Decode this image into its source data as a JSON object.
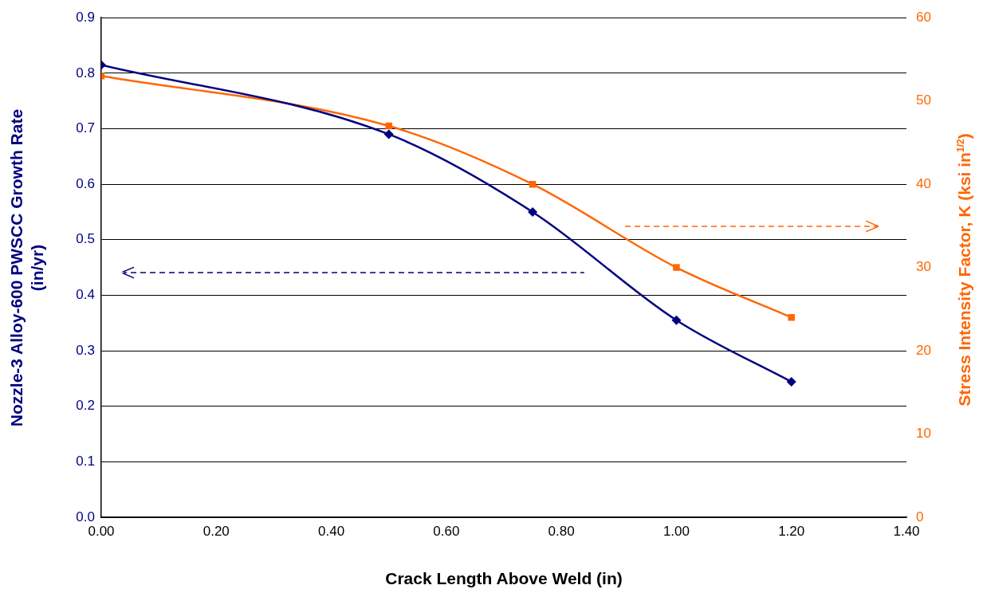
{
  "chart_data": {
    "type": "line",
    "xlabel": "Crack Length Above Weld (in)",
    "ylabel": "Nozzle-3 Alloy-600 PWSCC Growth Rate (in/yr)",
    "y2label": "Stress Intensity Factor, K (ksi in$^{1/2}$)",
    "x": [
      0,
      0.5,
      0.75,
      1.0,
      1.2
    ],
    "series": [
      {
        "color": "#000080",
        "marker": "diamond",
        "values": [
          0.815,
          0.69,
          0.55,
          0.355,
          0.244
        ]
      },
      {
        "color": "#ff6600",
        "marker": "square",
        "axis": "y2",
        "values": [
          53,
          47,
          40,
          30,
          24
        ]
      }
    ],
    "xlim": [
      0,
      1.4
    ],
    "xticks": [
      {
        "value": 0,
        "label": "0.00"
      },
      {
        "value": 0.2,
        "label": "0.20"
      },
      {
        "value": 0.4,
        "label": "0.40"
      },
      {
        "value": 0.6,
        "label": "0.60"
      },
      {
        "value": 0.8,
        "label": "0.80"
      },
      {
        "value": 1.0,
        "label": "1.00"
      },
      {
        "value": 1.2,
        "label": "1.20"
      },
      {
        "value": 1.4,
        "label": "1.40"
      }
    ],
    "ylim": [
      0,
      0.9
    ],
    "yticks": [
      {
        "value": 0,
        "label": "0.0"
      },
      0.1,
      0.2,
      0.3,
      0.4,
      0.5,
      0.6,
      0.7,
      0.8,
      0.9
    ],
    "y2lim": [
      0,
      60
    ],
    "y2ticks": [
      0,
      10,
      20,
      30,
      40,
      50,
      60
    ],
    "grid": "y",
    "legend": false,
    "line_style": "solid"
  }
}
